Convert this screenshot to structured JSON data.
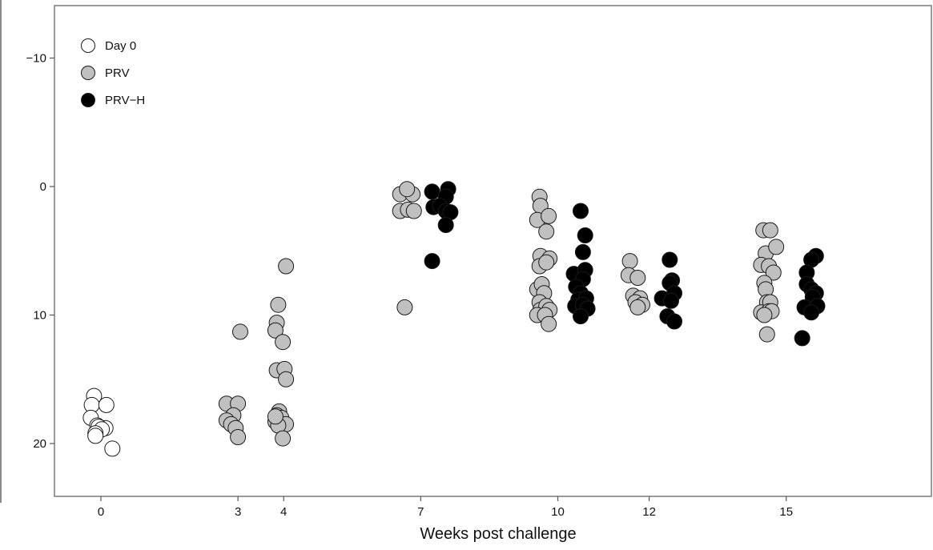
{
  "chart_data": {
    "type": "scatter",
    "title": "",
    "xlabel": "Weeks post challenge",
    "ylabel": "",
    "y_inverted": true,
    "ylim": [
      -13.5,
      24
    ],
    "y_ticks": [
      -10,
      0,
      10,
      20
    ],
    "x_ticks": [
      0,
      3,
      4,
      7,
      10,
      12,
      15
    ],
    "grid": false,
    "legend_position": "top-left",
    "series": [
      {
        "name": "Day 0",
        "color": "#ffffff",
        "points": [
          [
            -0.15,
            16.3
          ],
          [
            -0.2,
            17.0
          ],
          [
            0.12,
            17.0
          ],
          [
            -0.22,
            18.0
          ],
          [
            -0.08,
            18.6
          ],
          [
            0.1,
            18.8
          ],
          [
            -0.05,
            18.7
          ],
          [
            0.02,
            18.9
          ],
          [
            -0.12,
            19.2
          ],
          [
            -0.12,
            19.4
          ],
          [
            0.25,
            20.4
          ]
        ]
      },
      {
        "name": "PRV",
        "color": "#c0c0c0",
        "points": [
          [
            3.05,
            11.3
          ],
          [
            2.75,
            16.9
          ],
          [
            3.0,
            16.9
          ],
          [
            2.9,
            17.8
          ],
          [
            2.75,
            18.2
          ],
          [
            2.85,
            18.5
          ],
          [
            2.95,
            18.8
          ],
          [
            3.0,
            19.5
          ],
          [
            3.88,
            9.2
          ],
          [
            4.05,
            6.2
          ],
          [
            3.85,
            10.6
          ],
          [
            3.82,
            11.2
          ],
          [
            3.98,
            12.1
          ],
          [
            3.85,
            14.3
          ],
          [
            4.02,
            14.2
          ],
          [
            4.05,
            15.0
          ],
          [
            3.9,
            17.5
          ],
          [
            3.85,
            17.8
          ],
          [
            3.95,
            18.0
          ],
          [
            3.92,
            18.5
          ],
          [
            4.05,
            18.5
          ],
          [
            3.82,
            18.3
          ],
          [
            3.88,
            18.6
          ],
          [
            3.98,
            19.6
          ],
          [
            3.82,
            17.9
          ],
          [
            6.55,
            0.6
          ],
          [
            6.82,
            0.6
          ],
          [
            6.7,
            0.2
          ],
          [
            6.55,
            1.9
          ],
          [
            6.72,
            1.8
          ],
          [
            6.85,
            1.9
          ],
          [
            6.65,
            9.4
          ],
          [
            9.6,
            0.8
          ],
          [
            9.62,
            1.5
          ],
          [
            9.55,
            2.6
          ],
          [
            9.8,
            2.3
          ],
          [
            9.75,
            3.5
          ],
          [
            9.62,
            5.4
          ],
          [
            9.82,
            5.6
          ],
          [
            9.6,
            6.2
          ],
          [
            9.75,
            5.9
          ],
          [
            9.55,
            8.0
          ],
          [
            9.65,
            7.6
          ],
          [
            9.7,
            8.3
          ],
          [
            9.6,
            9.0
          ],
          [
            9.62,
            9.6
          ],
          [
            9.75,
            9.3
          ],
          [
            9.82,
            9.6
          ],
          [
            9.55,
            10.0
          ],
          [
            9.72,
            10.0
          ],
          [
            9.8,
            10.7
          ],
          [
            11.58,
            5.8
          ],
          [
            11.55,
            6.9
          ],
          [
            11.75,
            7.1
          ],
          [
            11.65,
            8.5
          ],
          [
            11.8,
            8.7
          ],
          [
            11.7,
            9.0
          ],
          [
            11.85,
            9.2
          ],
          [
            11.75,
            9.4
          ],
          [
            14.5,
            3.4
          ],
          [
            14.65,
            3.4
          ],
          [
            14.55,
            5.2
          ],
          [
            14.78,
            4.7
          ],
          [
            14.45,
            6.1
          ],
          [
            14.62,
            6.2
          ],
          [
            14.72,
            6.7
          ],
          [
            14.52,
            7.5
          ],
          [
            14.55,
            8.0
          ],
          [
            14.58,
            9.0
          ],
          [
            14.65,
            9.0
          ],
          [
            14.45,
            9.8
          ],
          [
            14.62,
            9.7
          ],
          [
            14.68,
            9.7
          ],
          [
            14.52,
            10.0
          ],
          [
            14.58,
            11.5
          ]
        ]
      },
      {
        "name": "PRV−H",
        "color": "#000000",
        "points": [
          [
            7.25,
            0.4
          ],
          [
            7.6,
            0.2
          ],
          [
            7.55,
            0.8
          ],
          [
            7.28,
            1.6
          ],
          [
            7.42,
            1.5
          ],
          [
            7.55,
            1.9
          ],
          [
            7.65,
            2.0
          ],
          [
            7.55,
            3.0
          ],
          [
            7.25,
            5.8
          ],
          [
            10.5,
            1.9
          ],
          [
            10.6,
            3.8
          ],
          [
            10.55,
            5.1
          ],
          [
            10.35,
            6.8
          ],
          [
            10.6,
            6.5
          ],
          [
            10.55,
            7.2
          ],
          [
            10.4,
            7.8
          ],
          [
            10.5,
            8.3
          ],
          [
            10.45,
            8.8
          ],
          [
            10.62,
            8.7
          ],
          [
            10.38,
            9.3
          ],
          [
            10.55,
            9.2
          ],
          [
            10.65,
            9.5
          ],
          [
            10.5,
            10.1
          ],
          [
            12.45,
            5.7
          ],
          [
            12.5,
            7.3
          ],
          [
            12.45,
            7.5
          ],
          [
            12.55,
            8.3
          ],
          [
            12.28,
            8.7
          ],
          [
            12.48,
            8.9
          ],
          [
            12.4,
            10.1
          ],
          [
            12.55,
            10.5
          ],
          [
            15.65,
            5.4
          ],
          [
            15.55,
            5.7
          ],
          [
            15.45,
            6.7
          ],
          [
            15.45,
            7.6
          ],
          [
            15.55,
            8.0
          ],
          [
            15.65,
            8.3
          ],
          [
            15.58,
            8.6
          ],
          [
            15.4,
            9.4
          ],
          [
            15.68,
            9.3
          ],
          [
            15.55,
            9.8
          ],
          [
            15.35,
            11.8
          ]
        ]
      }
    ]
  }
}
